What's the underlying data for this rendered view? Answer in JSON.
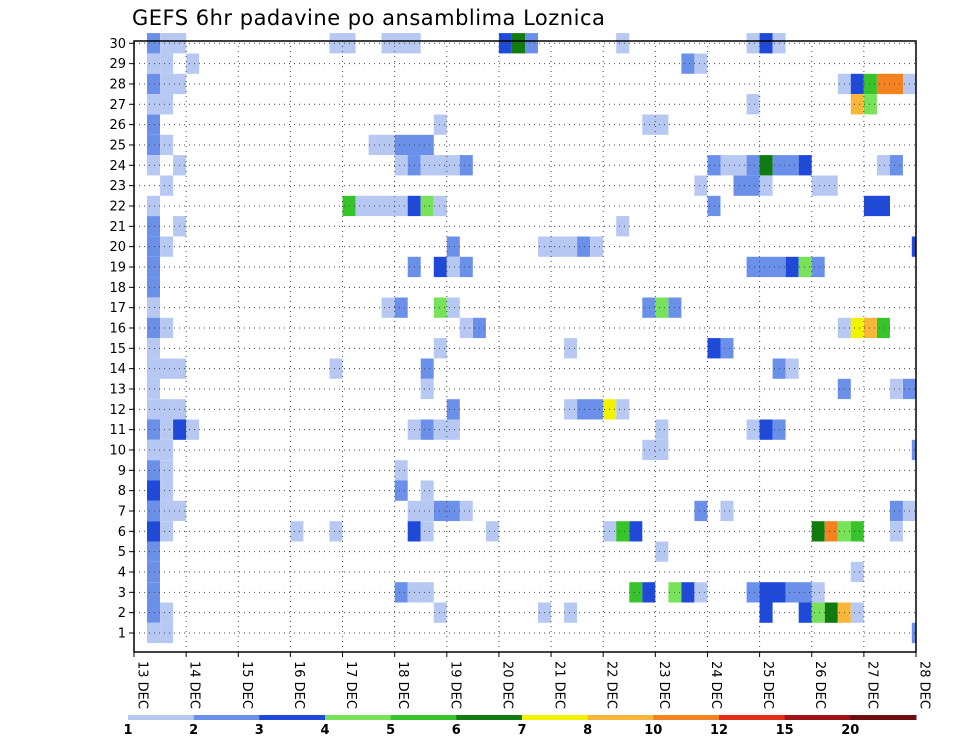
{
  "chart_data": {
    "type": "heatmap",
    "title": "GEFS 6hr padavine po ansamblima Loznica",
    "x_tick_labels": [
      "13 DEC",
      "14 DEC",
      "15 DEC",
      "16 DEC",
      "17 DEC",
      "18 DEC",
      "19 DEC",
      "20 DEC",
      "21 DEC",
      "22 DEC",
      "23 DEC",
      "24 DEC",
      "25 DEC",
      "26 DEC",
      "27 DEC",
      "28 DEC"
    ],
    "y_tick_labels": [
      "1",
      "2",
      "3",
      "4",
      "5",
      "6",
      "7",
      "8",
      "9",
      "10",
      "11",
      "12",
      "13",
      "14",
      "15",
      "16",
      "17",
      "18",
      "19",
      "20",
      "21",
      "22",
      "23",
      "24",
      "25",
      "26",
      "27",
      "28",
      "29",
      "30"
    ],
    "x_range_days": [
      13,
      28
    ],
    "time_step_hours": 6,
    "grid": "dotted",
    "colorbar": {
      "labels": [
        "1",
        "2",
        "3",
        "4",
        "5",
        "6",
        "7",
        "8",
        "10",
        "12",
        "15",
        "20"
      ],
      "colors": [
        "#b7c8f3",
        "#6a90ea",
        "#1f49d9",
        "#78e35a",
        "#36c42a",
        "#107c10",
        "#f3f300",
        "#f8b739",
        "#f4821e",
        "#e52d1b",
        "#a01419",
        "#6e0c10"
      ]
    },
    "cells": [
      [
        30,
        [
          [
            13.25,
            13.5,
            "#6a90ea"
          ],
          [
            13.5,
            14,
            "#b7c8f3"
          ],
          [
            16.75,
            17.25,
            "#b7c8f3"
          ],
          [
            17.75,
            18.5,
            "#b7c8f3"
          ],
          [
            20,
            20.25,
            "#1f49d9"
          ],
          [
            20.25,
            20.5,
            "#107c10"
          ],
          [
            20.5,
            20.75,
            "#6a90ea"
          ],
          [
            22.25,
            22.5,
            "#b7c8f3"
          ],
          [
            24.75,
            25,
            "#b7c8f3"
          ],
          [
            25,
            25.25,
            "#1f49d9"
          ],
          [
            25.25,
            25.5,
            "#b7c8f3"
          ]
        ]
      ],
      [
        29,
        [
          [
            13.25,
            13.5,
            "#b7c8f3"
          ],
          [
            13.5,
            13.75,
            "#b7c8f3"
          ],
          [
            14,
            14.25,
            "#b7c8f3"
          ],
          [
            23.5,
            23.75,
            "#6a90ea"
          ],
          [
            23.75,
            24,
            "#b7c8f3"
          ]
        ]
      ],
      [
        28,
        [
          [
            13.25,
            13.5,
            "#6a90ea"
          ],
          [
            13.5,
            14,
            "#b7c8f3"
          ],
          [
            26.5,
            26.75,
            "#b7c8f3"
          ],
          [
            26.75,
            27,
            "#1f49d9"
          ],
          [
            27,
            27.25,
            "#36c42a"
          ],
          [
            27.25,
            27.75,
            "#f4821e"
          ],
          [
            27.75,
            28,
            "#b7c8f3"
          ]
        ]
      ],
      [
        27,
        [
          [
            13.25,
            13.75,
            "#b7c8f3"
          ],
          [
            24.75,
            25,
            "#b7c8f3"
          ],
          [
            26.75,
            27,
            "#f8b739"
          ],
          [
            27,
            27.25,
            "#78e35a"
          ]
        ]
      ],
      [
        26,
        [
          [
            13.25,
            13.5,
            "#6a90ea"
          ],
          [
            18.75,
            19,
            "#b7c8f3"
          ],
          [
            22.75,
            23.25,
            "#b7c8f3"
          ]
        ]
      ],
      [
        25,
        [
          [
            13.25,
            13.5,
            "#6a90ea"
          ],
          [
            13.5,
            13.75,
            "#b7c8f3"
          ],
          [
            17.5,
            18,
            "#b7c8f3"
          ],
          [
            18,
            18.75,
            "#6a90ea"
          ]
        ]
      ],
      [
        24,
        [
          [
            13.25,
            13.5,
            "#b7c8f3"
          ],
          [
            13.75,
            14,
            "#b7c8f3"
          ],
          [
            18,
            18.25,
            "#b7c8f3"
          ],
          [
            18.25,
            18.5,
            "#6a90ea"
          ],
          [
            18.5,
            19.25,
            "#b7c8f3"
          ],
          [
            19.25,
            19.5,
            "#6a90ea"
          ],
          [
            24,
            24.25,
            "#6a90ea"
          ],
          [
            24.25,
            24.75,
            "#b7c8f3"
          ],
          [
            24.75,
            25,
            "#6a90ea"
          ],
          [
            25,
            25.25,
            "#107c10"
          ],
          [
            25.25,
            25.75,
            "#6a90ea"
          ],
          [
            25.75,
            26,
            "#1f49d9"
          ],
          [
            27.25,
            27.5,
            "#b7c8f3"
          ],
          [
            27.5,
            27.75,
            "#6a90ea"
          ]
        ]
      ],
      [
        23,
        [
          [
            13.5,
            13.75,
            "#b7c8f3"
          ],
          [
            23.75,
            24,
            "#b7c8f3"
          ],
          [
            24.5,
            25,
            "#6a90ea"
          ],
          [
            25,
            25.25,
            "#b7c8f3"
          ],
          [
            26,
            26.5,
            "#b7c8f3"
          ]
        ]
      ],
      [
        22,
        [
          [
            13.25,
            13.5,
            "#b7c8f3"
          ],
          [
            17,
            17.25,
            "#36c42a"
          ],
          [
            17.25,
            18.25,
            "#b7c8f3"
          ],
          [
            18.25,
            18.5,
            "#1f49d9"
          ],
          [
            18.5,
            18.75,
            "#78e35a"
          ],
          [
            18.75,
            19,
            "#b7c8f3"
          ],
          [
            24,
            24.25,
            "#6a90ea"
          ],
          [
            27,
            27.5,
            "#1f49d9"
          ]
        ]
      ],
      [
        21,
        [
          [
            13.25,
            13.5,
            "#6a90ea"
          ],
          [
            13.75,
            14,
            "#b7c8f3"
          ],
          [
            22.25,
            22.5,
            "#b7c8f3"
          ]
        ]
      ],
      [
        20,
        [
          [
            13.25,
            13.5,
            "#6a90ea"
          ],
          [
            13.5,
            13.75,
            "#b7c8f3"
          ],
          [
            19,
            19.25,
            "#6a90ea"
          ],
          [
            20.75,
            21.5,
            "#b7c8f3"
          ],
          [
            21.5,
            21.75,
            "#6a90ea"
          ],
          [
            21.75,
            22,
            "#b7c8f3"
          ],
          [
            27.92,
            28,
            "#1f49d9"
          ]
        ]
      ],
      [
        19,
        [
          [
            13.25,
            13.5,
            "#6a90ea"
          ],
          [
            18.25,
            18.5,
            "#6a90ea"
          ],
          [
            18.75,
            19,
            "#1f49d9"
          ],
          [
            19,
            19.25,
            "#b7c8f3"
          ],
          [
            19.25,
            19.5,
            "#6a90ea"
          ],
          [
            24.75,
            25.5,
            "#6a90ea"
          ],
          [
            25.5,
            25.75,
            "#1f49d9"
          ],
          [
            25.75,
            26,
            "#78e35a"
          ],
          [
            26,
            26.25,
            "#6a90ea"
          ]
        ]
      ],
      [
        18,
        [
          [
            13.25,
            13.5,
            "#6a90ea"
          ]
        ]
      ],
      [
        17,
        [
          [
            13.25,
            13.5,
            "#b7c8f3"
          ],
          [
            17.75,
            18,
            "#b7c8f3"
          ],
          [
            18,
            18.25,
            "#6a90ea"
          ],
          [
            18.75,
            19,
            "#78e35a"
          ],
          [
            19,
            19.25,
            "#b7c8f3"
          ],
          [
            22.75,
            23,
            "#6a90ea"
          ],
          [
            23,
            23.25,
            "#78e35a"
          ],
          [
            23.25,
            23.5,
            "#6a90ea"
          ]
        ]
      ],
      [
        16,
        [
          [
            13.25,
            13.5,
            "#6a90ea"
          ],
          [
            13.5,
            13.75,
            "#b7c8f3"
          ],
          [
            19.25,
            19.5,
            "#b7c8f3"
          ],
          [
            19.5,
            19.75,
            "#6a90ea"
          ],
          [
            26.5,
            26.75,
            "#b7c8f3"
          ],
          [
            26.75,
            27,
            "#f3f300"
          ],
          [
            27,
            27.25,
            "#f8b739"
          ],
          [
            27.25,
            27.5,
            "#36c42a"
          ]
        ]
      ],
      [
        15,
        [
          [
            13.25,
            13.5,
            "#b7c8f3"
          ],
          [
            18.75,
            19,
            "#b7c8f3"
          ],
          [
            21.25,
            21.5,
            "#b7c8f3"
          ],
          [
            24,
            24.25,
            "#1f49d9"
          ],
          [
            24.25,
            24.5,
            "#6a90ea"
          ]
        ]
      ],
      [
        14,
        [
          [
            13.25,
            13.75,
            "#b7c8f3"
          ],
          [
            13.75,
            14,
            "#b7c8f3"
          ],
          [
            16.75,
            17,
            "#b7c8f3"
          ],
          [
            18.5,
            18.75,
            "#6a90ea"
          ],
          [
            25.25,
            25.5,
            "#6a90ea"
          ],
          [
            25.5,
            25.75,
            "#b7c8f3"
          ]
        ]
      ],
      [
        13,
        [
          [
            13.25,
            13.5,
            "#b7c8f3"
          ],
          [
            18.5,
            18.75,
            "#b7c8f3"
          ],
          [
            26.5,
            26.75,
            "#6a90ea"
          ],
          [
            27.5,
            27.75,
            "#b7c8f3"
          ],
          [
            27.75,
            28,
            "#6a90ea"
          ]
        ]
      ],
      [
        12,
        [
          [
            13.25,
            13.75,
            "#b7c8f3"
          ],
          [
            13.75,
            14,
            "#b7c8f3"
          ],
          [
            19,
            19.25,
            "#6a90ea"
          ],
          [
            21.25,
            21.5,
            "#b7c8f3"
          ],
          [
            21.5,
            22,
            "#6a90ea"
          ],
          [
            22,
            22.25,
            "#f3f300"
          ],
          [
            22.25,
            22.5,
            "#b7c8f3"
          ]
        ]
      ],
      [
        11,
        [
          [
            13.25,
            13.5,
            "#6a90ea"
          ],
          [
            13.5,
            13.75,
            "#b7c8f3"
          ],
          [
            13.75,
            14,
            "#1f49d9"
          ],
          [
            14,
            14.25,
            "#b7c8f3"
          ],
          [
            18.25,
            18.5,
            "#b7c8f3"
          ],
          [
            18.5,
            18.75,
            "#6a90ea"
          ],
          [
            18.75,
            19.25,
            "#b7c8f3"
          ],
          [
            23,
            23.25,
            "#b7c8f3"
          ],
          [
            24.75,
            25,
            "#b7c8f3"
          ],
          [
            25,
            25.25,
            "#1f49d9"
          ],
          [
            25.25,
            25.5,
            "#6a90ea"
          ]
        ]
      ],
      [
        10,
        [
          [
            13.25,
            13.75,
            "#b7c8f3"
          ],
          [
            22.75,
            23.25,
            "#b7c8f3"
          ],
          [
            27.92,
            28,
            "#6a90ea"
          ]
        ]
      ],
      [
        9,
        [
          [
            13.25,
            13.5,
            "#6a90ea"
          ],
          [
            13.5,
            13.75,
            "#b7c8f3"
          ],
          [
            18,
            18.25,
            "#b7c8f3"
          ]
        ]
      ],
      [
        8,
        [
          [
            13.25,
            13.5,
            "#1f49d9"
          ],
          [
            13.5,
            13.75,
            "#b7c8f3"
          ],
          [
            18,
            18.25,
            "#6a90ea"
          ],
          [
            18.5,
            18.75,
            "#b7c8f3"
          ]
        ]
      ],
      [
        7,
        [
          [
            13.25,
            13.5,
            "#6a90ea"
          ],
          [
            13.5,
            14,
            "#b7c8f3"
          ],
          [
            18.25,
            18.75,
            "#b7c8f3"
          ],
          [
            18.75,
            19.25,
            "#6a90ea"
          ],
          [
            19.25,
            19.5,
            "#b7c8f3"
          ],
          [
            23.75,
            24,
            "#6a90ea"
          ],
          [
            24.25,
            24.5,
            "#b7c8f3"
          ],
          [
            27.5,
            27.75,
            "#6a90ea"
          ],
          [
            27.75,
            28,
            "#b7c8f3"
          ]
        ]
      ],
      [
        6,
        [
          [
            13.25,
            13.5,
            "#1f49d9"
          ],
          [
            13.5,
            13.75,
            "#b7c8f3"
          ],
          [
            16,
            16.25,
            "#b7c8f3"
          ],
          [
            16.75,
            17,
            "#b7c8f3"
          ],
          [
            18.25,
            18.5,
            "#1f49d9"
          ],
          [
            18.5,
            18.75,
            "#b7c8f3"
          ],
          [
            19.75,
            20,
            "#b7c8f3"
          ],
          [
            22,
            22.25,
            "#b7c8f3"
          ],
          [
            22.25,
            22.5,
            "#36c42a"
          ],
          [
            22.5,
            22.75,
            "#1f49d9"
          ],
          [
            26,
            26.25,
            "#107c10"
          ],
          [
            26.25,
            26.5,
            "#f4821e"
          ],
          [
            26.5,
            26.75,
            "#78e35a"
          ],
          [
            26.75,
            27,
            "#36c42a"
          ],
          [
            27.5,
            27.75,
            "#b7c8f3"
          ]
        ]
      ],
      [
        5,
        [
          [
            13.25,
            13.5,
            "#6a90ea"
          ],
          [
            23,
            23.25,
            "#b7c8f3"
          ]
        ]
      ],
      [
        4,
        [
          [
            13.25,
            13.5,
            "#6a90ea"
          ],
          [
            26.75,
            27,
            "#b7c8f3"
          ]
        ]
      ],
      [
        3,
        [
          [
            13.25,
            13.5,
            "#6a90ea"
          ],
          [
            18,
            18.25,
            "#6a90ea"
          ],
          [
            18.25,
            18.75,
            "#b7c8f3"
          ],
          [
            22.5,
            22.75,
            "#36c42a"
          ],
          [
            22.75,
            23,
            "#1f49d9"
          ],
          [
            23.25,
            23.5,
            "#78e35a"
          ],
          [
            23.5,
            23.75,
            "#1f49d9"
          ],
          [
            23.75,
            24,
            "#b7c8f3"
          ],
          [
            24.75,
            25,
            "#6a90ea"
          ],
          [
            25,
            25.5,
            "#1f49d9"
          ],
          [
            25.5,
            26,
            "#6a90ea"
          ],
          [
            26,
            26.25,
            "#b7c8f3"
          ]
        ]
      ],
      [
        2,
        [
          [
            13.25,
            13.5,
            "#6a90ea"
          ],
          [
            13.5,
            13.75,
            "#b7c8f3"
          ],
          [
            18.75,
            19,
            "#b7c8f3"
          ],
          [
            20.75,
            21,
            "#b7c8f3"
          ],
          [
            21.25,
            21.5,
            "#b7c8f3"
          ],
          [
            25,
            25.25,
            "#1f49d9"
          ],
          [
            25.75,
            26,
            "#1f49d9"
          ],
          [
            26,
            26.25,
            "#78e35a"
          ],
          [
            26.25,
            26.5,
            "#107c10"
          ],
          [
            26.5,
            26.75,
            "#f8b739"
          ],
          [
            26.75,
            27,
            "#b7c8f3"
          ]
        ]
      ],
      [
        1,
        [
          [
            13.25,
            13.5,
            "#b7c8f3"
          ],
          [
            13.5,
            13.75,
            "#b7c8f3"
          ],
          [
            27.92,
            28,
            "#6a90ea"
          ]
        ]
      ]
    ]
  }
}
